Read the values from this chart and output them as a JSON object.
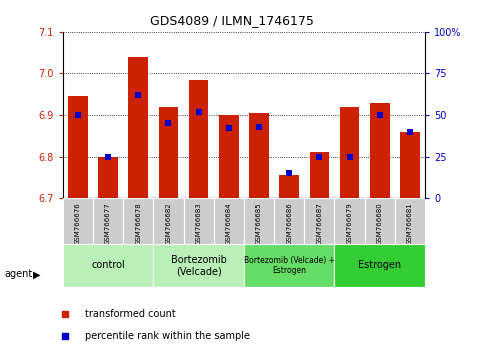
{
  "title": "GDS4089 / ILMN_1746175",
  "samples": [
    "GSM766676",
    "GSM766677",
    "GSM766678",
    "GSM766682",
    "GSM766683",
    "GSM766684",
    "GSM766685",
    "GSM766686",
    "GSM766687",
    "GSM766679",
    "GSM766680",
    "GSM766681"
  ],
  "red_values": [
    6.945,
    6.8,
    7.04,
    6.92,
    6.985,
    6.9,
    6.905,
    6.755,
    6.81,
    6.92,
    6.93,
    6.86
  ],
  "blue_values": [
    50,
    25,
    62,
    45,
    52,
    42,
    43,
    15,
    25,
    25,
    50,
    40
  ],
  "ylim_left": [
    6.7,
    7.1
  ],
  "ylim_right": [
    0,
    100
  ],
  "yticks_left": [
    6.7,
    6.8,
    6.9,
    7.0,
    7.1
  ],
  "yticks_right": [
    0,
    25,
    50,
    75,
    100
  ],
  "ytick_right_labels": [
    "0",
    "25",
    "50",
    "75",
    "100%"
  ],
  "bar_bottom": 6.7,
  "bar_color": "#cc2200",
  "dot_color": "#0000cc",
  "ylabel_left_color": "#cc2200",
  "ylabel_right_color": "#0000cc",
  "agent_label": "agent",
  "legend_red": "transformed count",
  "legend_blue": "percentile rank within the sample",
  "bar_width": 0.65,
  "dot_size": 18,
  "groups_def": [
    [
      0,
      2,
      "control",
      "#b8f0b8"
    ],
    [
      3,
      5,
      "Bortezomib\n(Velcade)",
      "#b8f0b8"
    ],
    [
      6,
      8,
      "Bortezomib (Velcade) +\nEstrogen",
      "#66dd66"
    ],
    [
      9,
      11,
      "Estrogen",
      "#33cc33"
    ]
  ]
}
